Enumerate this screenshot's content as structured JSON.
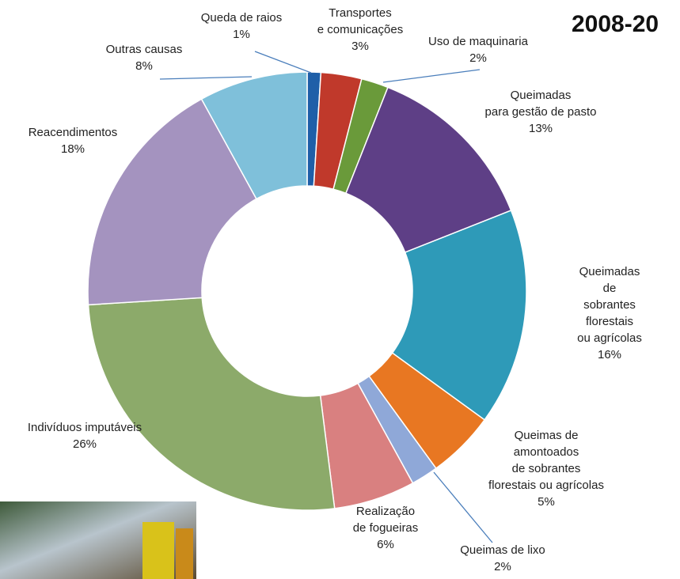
{
  "chart_data": {
    "type": "donut",
    "title": "2008-20",
    "categories": [
      "Queda de raios",
      "Transportes\ne  comunicações",
      "Uso de maquinaria",
      "Queimadas\npara gestão de pasto",
      "Queimadas de\nsobrantes  florestais\nou agrícolas",
      "Queimas de\namontoados\nde  sobrantes\nflorestais ou agrícolas",
      "Queimas de lixo",
      "Realização\nde  fogueiras",
      "Indivíduos  imputáveis",
      "Reacendimentos",
      "Outras causas"
    ],
    "values": [
      1,
      3,
      2,
      13,
      16,
      5,
      2,
      6,
      26,
      18,
      8
    ],
    "value_labels": [
      "1%",
      "3%",
      "2%",
      "13%",
      "16%",
      "5%",
      "2%",
      "6%",
      "26%",
      "18%",
      "8%"
    ],
    "colors": [
      "#1f5fa8",
      "#c0392b",
      "#6a9a3a",
      "#5e3f86",
      "#2e9ab8",
      "#e87722",
      "#8fa8d8",
      "#d98080",
      "#8caa6a",
      "#a493bf",
      "#7fc0da"
    ]
  }
}
